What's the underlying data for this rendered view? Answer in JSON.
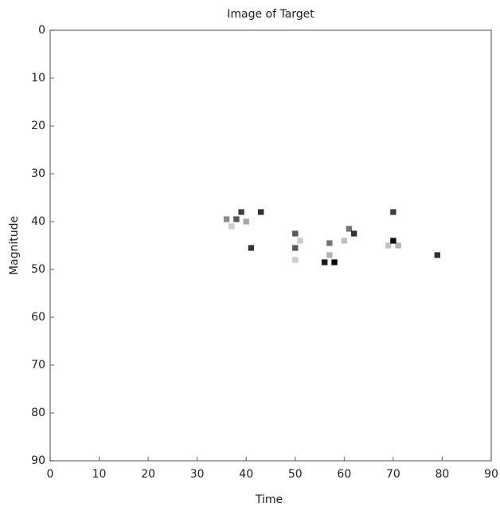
{
  "chart_data": {
    "type": "heatmap",
    "title": "Image of Target",
    "x_label": "Time",
    "y_label": "Magnitude",
    "x": [
      36,
      38,
      39,
      40,
      43,
      41,
      50,
      50,
      51,
      56,
      57,
      58,
      61,
      62,
      60,
      70,
      70,
      71,
      79,
      37,
      57,
      50,
      69
    ],
    "y": [
      39.5,
      39.5,
      38,
      40,
      38,
      45.5,
      42.5,
      45.5,
      44,
      48.5,
      44.5,
      48.5,
      41.5,
      42.5,
      44,
      38,
      44,
      45,
      47,
      41,
      47,
      48,
      45
    ],
    "values": [
      0.45,
      0.65,
      0.75,
      0.35,
      0.8,
      0.8,
      0.65,
      0.65,
      0.2,
      0.9,
      0.55,
      1.0,
      0.55,
      0.8,
      0.25,
      0.75,
      0.95,
      0.3,
      0.8,
      0.2,
      0.3,
      0.2,
      0.25
    ],
    "color": "#000000",
    "xlim": [
      0,
      90
    ],
    "ylim": [
      0,
      90
    ],
    "invert_y": true,
    "xticks": [
      0,
      10,
      20,
      30,
      40,
      50,
      60,
      70,
      80,
      90
    ],
    "yticks": [
      0,
      10,
      20,
      30,
      40,
      50,
      60,
      70,
      80,
      90
    ]
  }
}
